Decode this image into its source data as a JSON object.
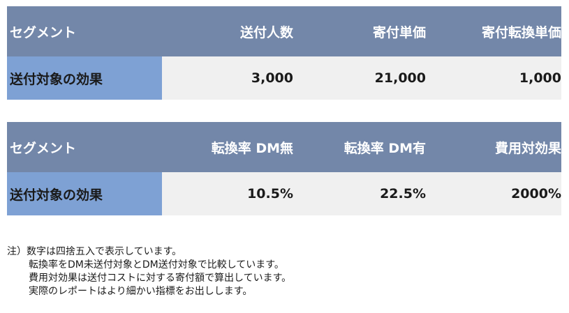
{
  "tables": [
    {
      "headers": [
        "セグメント",
        "送付人数",
        "寄付単価",
        "寄付転換単価"
      ],
      "row": [
        "送付対象の効果",
        "3,000",
        "21,000",
        "1,000"
      ]
    },
    {
      "headers": [
        "セグメント",
        "転換率 DM無",
        "転換率 DM有",
        "費用対効果"
      ],
      "row": [
        "送付対象の効果",
        "10.5%",
        "22.5%",
        "2000%"
      ]
    }
  ],
  "notes": {
    "line1": "注）数字は四捨五入で表示しています。",
    "line2": "転換率をDM未送付対象とDM送付対象で比較しています。",
    "line3": "費用対効果は送付コストに対する寄付額で算出しています。",
    "line4": "実際のレポートはより細かい指標をお出しします。"
  }
}
